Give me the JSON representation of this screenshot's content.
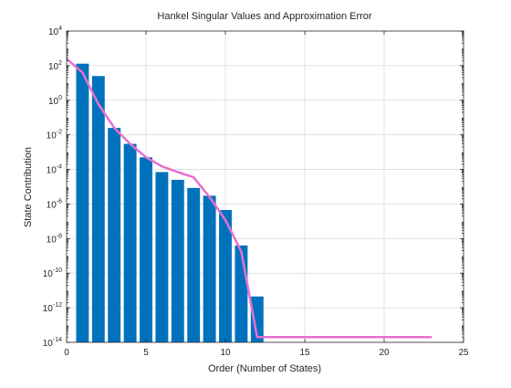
{
  "chart_data": {
    "type": "bar",
    "title": "Hankel Singular Values and Approximation Error",
    "xlabel": "Order (Number of States)",
    "ylabel": "State Contribution",
    "xlim": [
      0,
      25
    ],
    "ylim_exponent": [
      -14,
      4
    ],
    "y_scale": "log",
    "grid": true,
    "x_ticks": [
      "0",
      "5",
      "10",
      "15",
      "20",
      "25"
    ],
    "y_ticks": [
      {
        "base": "10",
        "exp": "4"
      },
      {
        "base": "10",
        "exp": "2"
      },
      {
        "base": "10",
        "exp": "0"
      },
      {
        "base": "10",
        "exp": "-2"
      },
      {
        "base": "10",
        "exp": "-4"
      },
      {
        "base": "10",
        "exp": "-6"
      },
      {
        "base": "10",
        "exp": "-8"
      },
      {
        "base": "10",
        "exp": "-10"
      },
      {
        "base": "10",
        "exp": "-12"
      },
      {
        "base": "10",
        "exp": "-14"
      }
    ],
    "series": [
      {
        "kind": "bar",
        "color": "#0072BD",
        "x": [
          1,
          2,
          3,
          4,
          5,
          6,
          7,
          8,
          9,
          10,
          11,
          12
        ],
        "values": [
          130,
          25,
          0.025,
          0.003,
          0.0005,
          7e-05,
          2.5e-05,
          8.5e-06,
          3e-06,
          4.5e-07,
          4e-09,
          4.5e-12
        ]
      },
      {
        "kind": "line",
        "color": "#E86FCF",
        "x": [
          0,
          1,
          2,
          3,
          4,
          5,
          6,
          7,
          8,
          9,
          10,
          11,
          12,
          13,
          14,
          15,
          16,
          17,
          18,
          19,
          20,
          21,
          22,
          23
        ],
        "values": [
          250,
          40,
          0.6,
          0.025,
          0.003,
          0.0005,
          0.00015,
          7e-05,
          3.5e-05,
          2.5e-06,
          1.2e-07,
          1.8e-09,
          2e-14,
          2e-14,
          2e-14,
          2e-14,
          2e-14,
          2e-14,
          2e-14,
          2e-14,
          2e-14,
          2e-14,
          2e-14,
          2e-14
        ]
      }
    ]
  }
}
